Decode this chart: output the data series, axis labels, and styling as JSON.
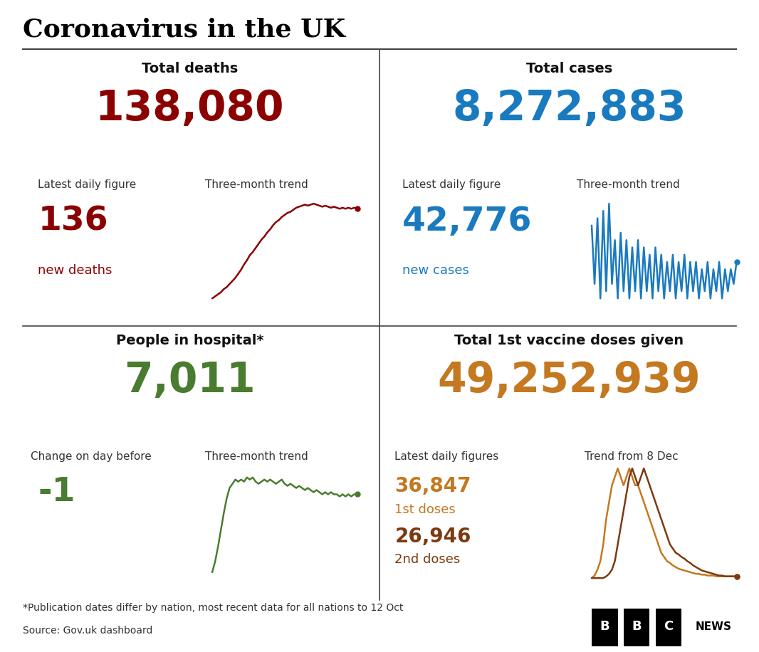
{
  "title": "Coronavirus in the UK",
  "bg_color": "#ffffff",
  "title_color": "#000000",
  "divider_color": "#444444",
  "panel_tl": {
    "label": "Total deaths",
    "big_number": "138,080",
    "big_color": "#8b0000",
    "sub_label1": "Latest daily figure",
    "sub_label2": "Three-month trend",
    "daily_number": "136",
    "daily_label": "new deaths",
    "daily_color": "#8b0000",
    "trend_color": "#8b0000",
    "trend_x": [
      0,
      1,
      2,
      3,
      4,
      5,
      6,
      7,
      8,
      9,
      10,
      11,
      12,
      13,
      14,
      15,
      16,
      17,
      18,
      19,
      20,
      21,
      22,
      23,
      24,
      25,
      26,
      27,
      28,
      29,
      30,
      31,
      32,
      33,
      34,
      35,
      36,
      37,
      38,
      39,
      40,
      41,
      42,
      43,
      44,
      45,
      46,
      47,
      48,
      49,
      50
    ],
    "trend_y": [
      0.5,
      0.7,
      0.9,
      1.1,
      1.4,
      1.6,
      1.9,
      2.2,
      2.5,
      2.9,
      3.3,
      3.8,
      4.2,
      4.7,
      5.0,
      5.4,
      5.8,
      6.2,
      6.5,
      6.9,
      7.2,
      7.6,
      7.9,
      8.1,
      8.4,
      8.6,
      8.8,
      8.9,
      9.1,
      9.3,
      9.4,
      9.5,
      9.6,
      9.5,
      9.6,
      9.7,
      9.6,
      9.5,
      9.4,
      9.5,
      9.4,
      9.3,
      9.4,
      9.3,
      9.2,
      9.3,
      9.2,
      9.3,
      9.2,
      9.3,
      9.2
    ]
  },
  "panel_tr": {
    "label": "Total cases",
    "big_number": "8,272,883",
    "big_color": "#1a7abf",
    "sub_label1": "Latest daily figure",
    "sub_label2": "Three-month trend",
    "daily_number": "42,776",
    "daily_label": "new cases",
    "daily_color": "#1a7abf",
    "trend_color": "#1a7abf",
    "trend_x": [
      0,
      1,
      2,
      3,
      4,
      5,
      6,
      7,
      8,
      9,
      10,
      11,
      12,
      13,
      14,
      15,
      16,
      17,
      18,
      19,
      20,
      21,
      22,
      23,
      24,
      25,
      26,
      27,
      28,
      29,
      30,
      31,
      32,
      33,
      34,
      35,
      36,
      37,
      38,
      39,
      40,
      41,
      42,
      43,
      44,
      45,
      46,
      47,
      48,
      49,
      50
    ],
    "trend_y": [
      6,
      5.2,
      6.1,
      5.0,
      6.2,
      5.1,
      6.3,
      5.2,
      5.8,
      5.0,
      5.9,
      5.1,
      5.8,
      5.0,
      5.7,
      5.1,
      5.8,
      5.0,
      5.7,
      5.1,
      5.6,
      5.0,
      5.7,
      5.1,
      5.6,
      5.0,
      5.5,
      5.1,
      5.6,
      5.0,
      5.5,
      5.1,
      5.6,
      5.0,
      5.5,
      5.1,
      5.5,
      5.0,
      5.4,
      5.1,
      5.5,
      5.0,
      5.4,
      5.1,
      5.5,
      5.0,
      5.4,
      5.1,
      5.4,
      5.2,
      5.5
    ]
  },
  "panel_bl": {
    "label": "People in hospital*",
    "big_number": "7,011",
    "big_color": "#4a7c2f",
    "sub_label1": "Change on day before",
    "sub_label2": "Three-month trend",
    "daily_number": "-1",
    "daily_color": "#4a7c2f",
    "trend_color": "#4a7c2f",
    "trend_x": [
      0,
      1,
      2,
      3,
      4,
      5,
      6,
      7,
      8,
      9,
      10,
      11,
      12,
      13,
      14,
      15,
      16,
      17,
      18,
      19,
      20,
      21,
      22,
      23,
      24,
      25,
      26,
      27,
      28,
      29,
      30,
      31,
      32,
      33,
      34,
      35,
      36,
      37,
      38,
      39,
      40,
      41,
      42,
      43,
      44,
      45,
      46,
      47,
      48,
      49,
      50
    ],
    "trend_y": [
      1.0,
      1.5,
      2.2,
      3.0,
      3.8,
      4.5,
      5.0,
      5.2,
      5.4,
      5.3,
      5.4,
      5.3,
      5.5,
      5.4,
      5.5,
      5.3,
      5.2,
      5.3,
      5.4,
      5.3,
      5.4,
      5.3,
      5.2,
      5.3,
      5.4,
      5.2,
      5.1,
      5.2,
      5.1,
      5.0,
      5.1,
      5.0,
      4.9,
      5.0,
      4.9,
      4.8,
      4.9,
      4.8,
      4.7,
      4.8,
      4.7,
      4.8,
      4.7,
      4.7,
      4.6,
      4.7,
      4.6,
      4.7,
      4.6,
      4.7,
      4.7
    ]
  },
  "panel_br": {
    "label": "Total 1st vaccine doses given",
    "big_number": "49,252,939",
    "big_color": "#c47820",
    "sub_label1": "Latest daily figures",
    "sub_label2": "Trend from 8 Dec",
    "daily_number1": "36,847",
    "daily_label1": "1st doses",
    "daily_color1": "#c47820",
    "daily_number2": "26,946",
    "daily_label2": "2nd doses",
    "daily_color2": "#7b3a10",
    "trend_color1": "#c47820",
    "trend_color2": "#7b3a10",
    "trend_x": [
      0,
      1,
      2,
      3,
      4,
      5,
      6,
      7,
      8,
      9,
      10,
      11,
      12,
      13,
      14,
      15,
      16,
      17,
      18,
      19,
      20,
      21,
      22,
      23,
      24,
      25,
      26,
      27,
      28,
      29,
      30,
      31,
      32,
      33,
      34,
      35,
      36,
      37,
      38,
      39,
      40,
      41,
      42,
      43,
      44,
      45,
      46,
      47,
      48,
      49,
      50
    ],
    "trend_y1": [
      0,
      0.3,
      1,
      2,
      4,
      7,
      9,
      11,
      12,
      13,
      12,
      11,
      12,
      13,
      12,
      11,
      11,
      10,
      9,
      8,
      7,
      6,
      5,
      4,
      3,
      2.5,
      2,
      1.8,
      1.5,
      1.3,
      1.1,
      1.0,
      0.9,
      0.8,
      0.7,
      0.6,
      0.5,
      0.5,
      0.4,
      0.4,
      0.3,
      0.3,
      0.3,
      0.2,
      0.2,
      0.2,
      0.2,
      0.2,
      0.2,
      0.2,
      0.2
    ],
    "trend_y2": [
      0,
      0,
      0,
      0,
      0,
      0.2,
      0.5,
      1,
      2,
      4,
      6,
      8,
      10,
      12,
      13,
      12,
      11,
      12,
      13,
      12,
      11,
      10,
      9,
      8,
      7,
      6,
      5,
      4,
      3.5,
      3,
      2.8,
      2.5,
      2.3,
      2.0,
      1.8,
      1.5,
      1.3,
      1.1,
      0.9,
      0.8,
      0.7,
      0.6,
      0.5,
      0.4,
      0.3,
      0.3,
      0.2,
      0.2,
      0.2,
      0.2,
      0.2
    ]
  },
  "footnote": "*Publication dates differ by nation, most recent data for all nations to 12 Oct",
  "source": "Source: Gov.uk dashboard",
  "footnote_color": "#333333"
}
